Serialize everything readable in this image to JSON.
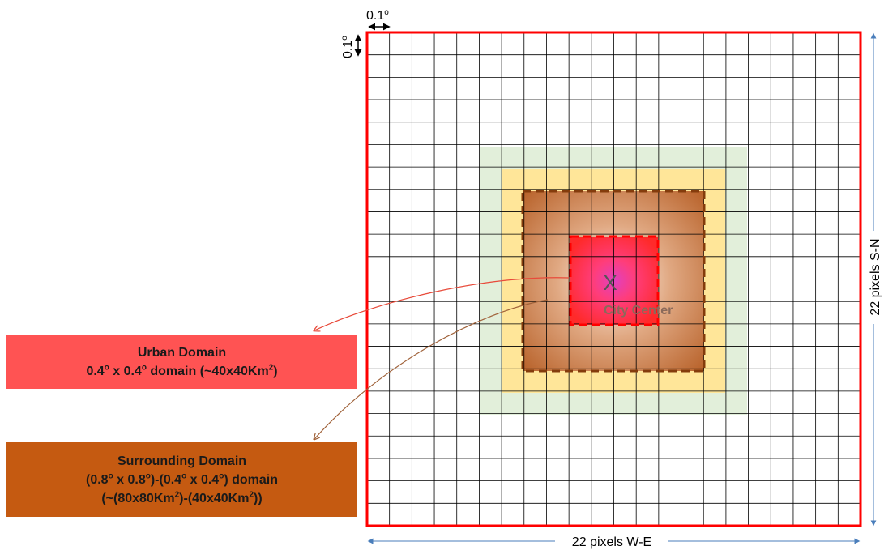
{
  "labels": {
    "cell_width": "0.1",
    "cell_height": "0.1",
    "degree_symbol": "o",
    "center_marker": "X",
    "city_center": "City Center",
    "bottom_axis": "22 pixels W-E",
    "right_axis": "22 pixels S-N"
  },
  "urban_domain": {
    "title": "Urban Domain",
    "line1": "0.4",
    "line1_mid": " x 0.4",
    "line1_end": " domain (~40x40Km",
    "line1_close": ")"
  },
  "surrounding_domain": {
    "title": "Surrounding Domain",
    "line1_a": "(0.8",
    "line1_b": " x 0.8",
    "line1_c": ")-(0.4",
    "line1_d": " x 0.4",
    "line1_e": ") domain",
    "line2_a": "(~(80x80Km",
    "line2_b": ")-(40x40Km",
    "line2_c": "))"
  },
  "superscripts": {
    "degree": "o",
    "squared": "2"
  },
  "grid": {
    "columns": 22,
    "rows": 22
  },
  "colors": {
    "grid_border": "#ff0000",
    "grid_line": "#000000",
    "green_zone": "#e2efda",
    "yellow_zone": "#ffe699",
    "surrounding_zone": "#c55a11",
    "urban_zone": "#ff3b3b",
    "center": "#e040c0",
    "urban_box": "#ff5353",
    "surround_box": "#c55a11",
    "axis_arrow": "#4a7ebb",
    "urban_arrow": "#e84a3a",
    "surround_arrow": "#a0623a"
  }
}
